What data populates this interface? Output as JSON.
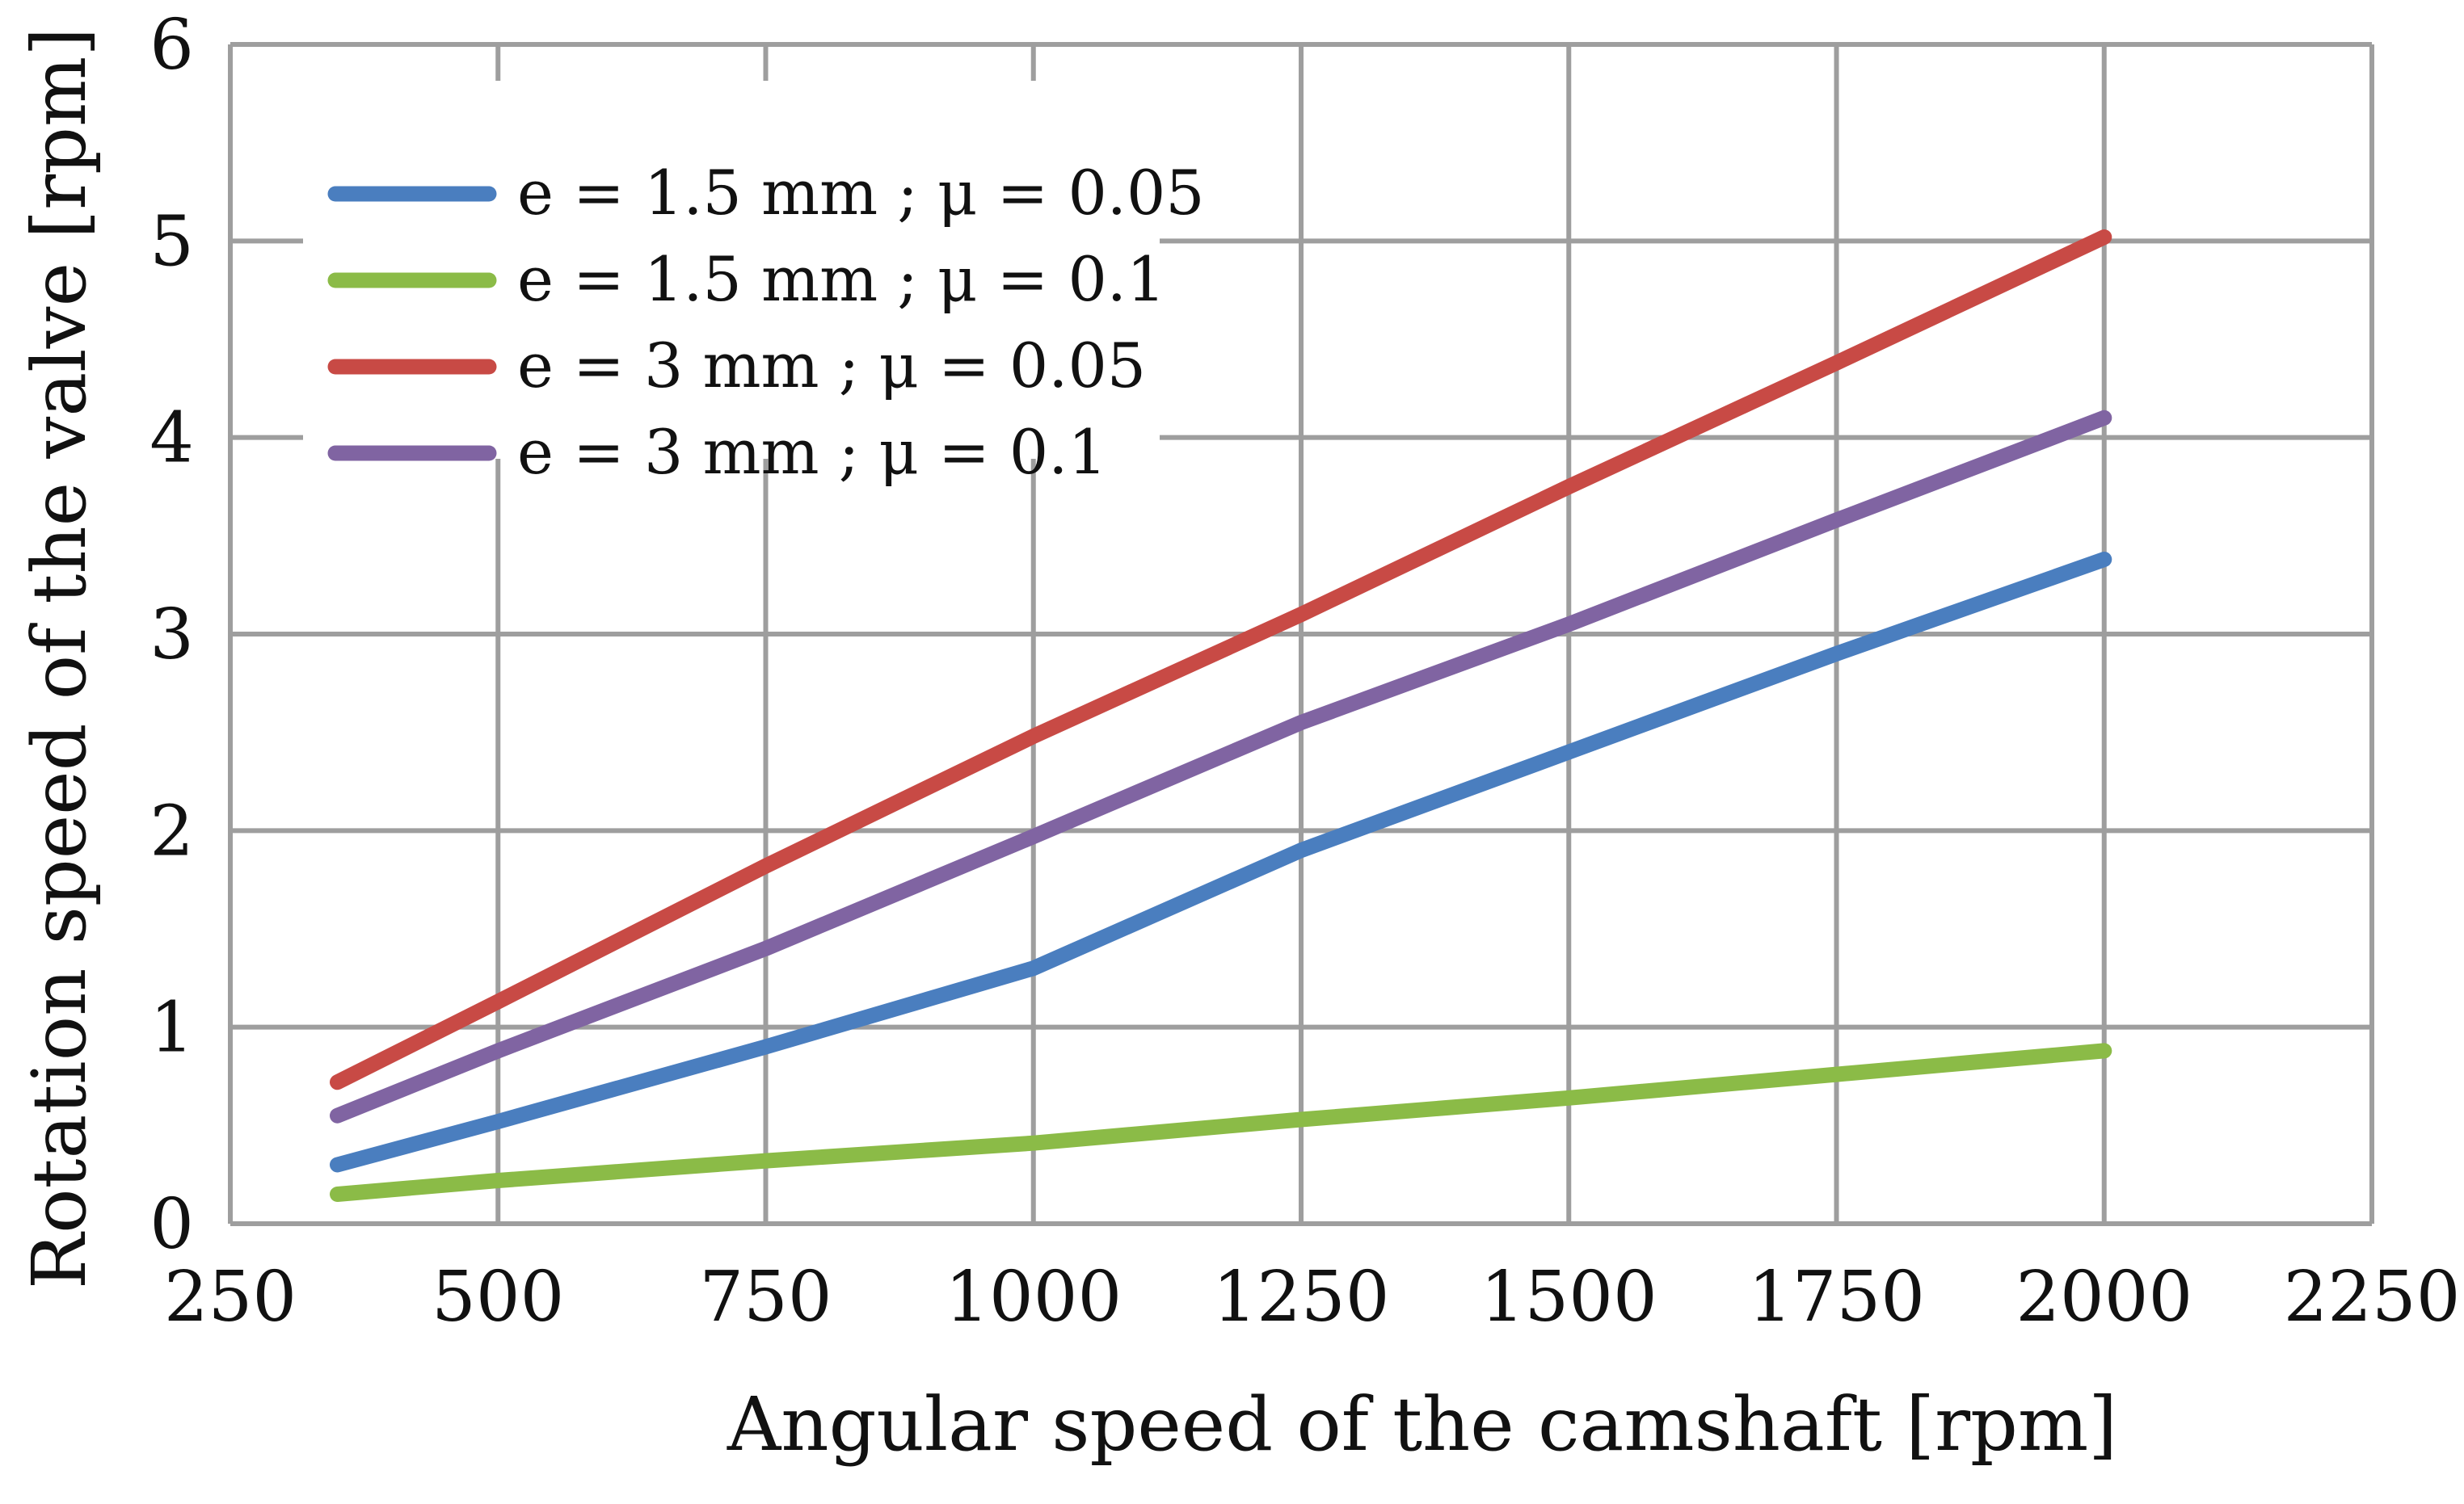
{
  "chart_data": {
    "type": "line",
    "title": "",
    "xlabel": "Angular speed of the camshaft [rpm]",
    "ylabel": "Rotation speed of the valve [rpm]",
    "xlim": [
      250,
      2250
    ],
    "ylim": [
      0,
      6
    ],
    "xticks": [
      250,
      500,
      750,
      1000,
      1250,
      1500,
      1750,
      2000,
      2250
    ],
    "yticks": [
      0,
      1,
      2,
      3,
      4,
      5,
      6
    ],
    "xtick_labels": [
      "250",
      "500",
      "750",
      "1000",
      "1250",
      "1500",
      "1750",
      "2000",
      "2250"
    ],
    "ytick_labels": [
      "0",
      "1",
      "2",
      "3",
      "4",
      "5",
      "6"
    ],
    "grid": true,
    "legend_position": "top-left",
    "series": [
      {
        "name": "e = 1.5 mm ; μ = 0.05",
        "color": "#4a7ebf",
        "x": [
          350,
          500,
          750,
          1000,
          1250,
          1500,
          1750,
          2000
        ],
        "y": [
          0.3,
          0.52,
          0.9,
          1.3,
          1.9,
          2.4,
          2.9,
          3.38
        ]
      },
      {
        "name": "e = 1.5 mm ; μ = 0.1",
        "color": "#8bbb47",
        "x": [
          350,
          500,
          750,
          1000,
          1250,
          1500,
          1750,
          2000
        ],
        "y": [
          0.15,
          0.22,
          0.32,
          0.41,
          0.53,
          0.64,
          0.76,
          0.88
        ]
      },
      {
        "name": "e = 3 mm ; μ = 0.05",
        "color": "#c84a45",
        "x": [
          350,
          500,
          750,
          1000,
          1250,
          1500,
          1750,
          2000
        ],
        "y": [
          0.72,
          1.13,
          1.82,
          2.48,
          3.1,
          3.75,
          4.38,
          5.02
        ]
      },
      {
        "name": "e = 3 mm ; μ = 0.1",
        "color": "#8064a2",
        "x": [
          350,
          500,
          750,
          1000,
          1250,
          1500,
          1750,
          2000
        ],
        "y": [
          0.55,
          0.88,
          1.4,
          1.97,
          2.55,
          3.05,
          3.58,
          4.1
        ]
      }
    ]
  }
}
